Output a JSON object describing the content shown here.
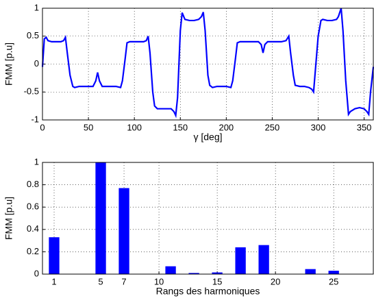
{
  "chart_data": [
    {
      "type": "line",
      "xlabel": "γ [deg]",
      "ylabel": "FMM [p.u]",
      "xlim": [
        0,
        360
      ],
      "ylim": [
        -1,
        1
      ],
      "xticks": [
        0,
        50,
        100,
        150,
        200,
        250,
        300,
        350
      ],
      "yticks": [
        -1,
        -0.5,
        0,
        0.5,
        1
      ],
      "grid": true,
      "series": [
        {
          "color": "#0000ff",
          "x": [
            0,
            2,
            4,
            6,
            10,
            15,
            20,
            23,
            25,
            27,
            30,
            33,
            35,
            40,
            45,
            50,
            55,
            58,
            60,
            62,
            65,
            70,
            75,
            80,
            85,
            87,
            90,
            92,
            95,
            100,
            105,
            110,
            113,
            115,
            117,
            120,
            122,
            125,
            130,
            135,
            140,
            143,
            145,
            147,
            150,
            152,
            155,
            160,
            165,
            170,
            173,
            175,
            177,
            180,
            182,
            185,
            190,
            195,
            200,
            205,
            207,
            210,
            212,
            215,
            220,
            225,
            230,
            235,
            238,
            240,
            242,
            245,
            250,
            255,
            260,
            265,
            268,
            270,
            273,
            275,
            280,
            285,
            290,
            293,
            295,
            297,
            300,
            303,
            305,
            310,
            315,
            320,
            322,
            325,
            327,
            330,
            333,
            335,
            340,
            345,
            350,
            353,
            355,
            357,
            360
          ],
          "values": [
            -0.05,
            0.45,
            0.48,
            0.42,
            0.4,
            0.4,
            0.4,
            0.42,
            0.48,
            0.2,
            -0.2,
            -0.4,
            -0.42,
            -0.4,
            -0.4,
            -0.4,
            -0.4,
            -0.3,
            -0.15,
            -0.3,
            -0.4,
            -0.4,
            -0.4,
            -0.4,
            -0.42,
            -0.3,
            0.1,
            0.38,
            0.4,
            0.4,
            0.4,
            0.4,
            0.42,
            0.5,
            0.2,
            -0.5,
            -0.75,
            -0.8,
            -0.8,
            -0.8,
            -0.8,
            -0.85,
            -0.92,
            -0.6,
            0.6,
            0.92,
            0.8,
            0.78,
            0.78,
            0.8,
            0.85,
            0.93,
            0.6,
            -0.2,
            -0.38,
            -0.42,
            -0.4,
            -0.4,
            -0.4,
            -0.42,
            -0.3,
            0.1,
            0.38,
            0.4,
            0.4,
            0.4,
            0.4,
            0.4,
            0.35,
            0.2,
            0.35,
            0.4,
            0.4,
            0.4,
            0.4,
            0.42,
            0.5,
            0.2,
            -0.2,
            -0.38,
            -0.4,
            -0.4,
            -0.42,
            -0.45,
            -0.5,
            -0.1,
            0.5,
            0.78,
            0.8,
            0.78,
            0.78,
            0.8,
            0.85,
            1.0,
            0.6,
            -0.3,
            -0.9,
            -0.85,
            -0.8,
            -0.78,
            -0.8,
            -0.85,
            -0.9,
            -0.5,
            -0.05
          ]
        }
      ]
    },
    {
      "type": "bar",
      "xlabel": "Rangs des harmoniques",
      "ylabel": "FMM [p.u]",
      "xlim": [
        0,
        28.4
      ],
      "ylim": [
        0,
        1
      ],
      "xticks": [
        1,
        5,
        7,
        10,
        15,
        20,
        25
      ],
      "yticks": [
        0,
        0.2,
        0.4,
        0.6,
        0.8,
        1
      ],
      "grid": true,
      "series": [
        {
          "color": "#0000ff",
          "x": [
            1,
            5,
            7,
            11,
            13,
            15,
            17,
            19,
            23,
            25
          ],
          "values": [
            0.33,
            1.0,
            0.77,
            0.07,
            0.01,
            0.015,
            0.24,
            0.26,
            0.045,
            0.03
          ]
        }
      ]
    }
  ]
}
